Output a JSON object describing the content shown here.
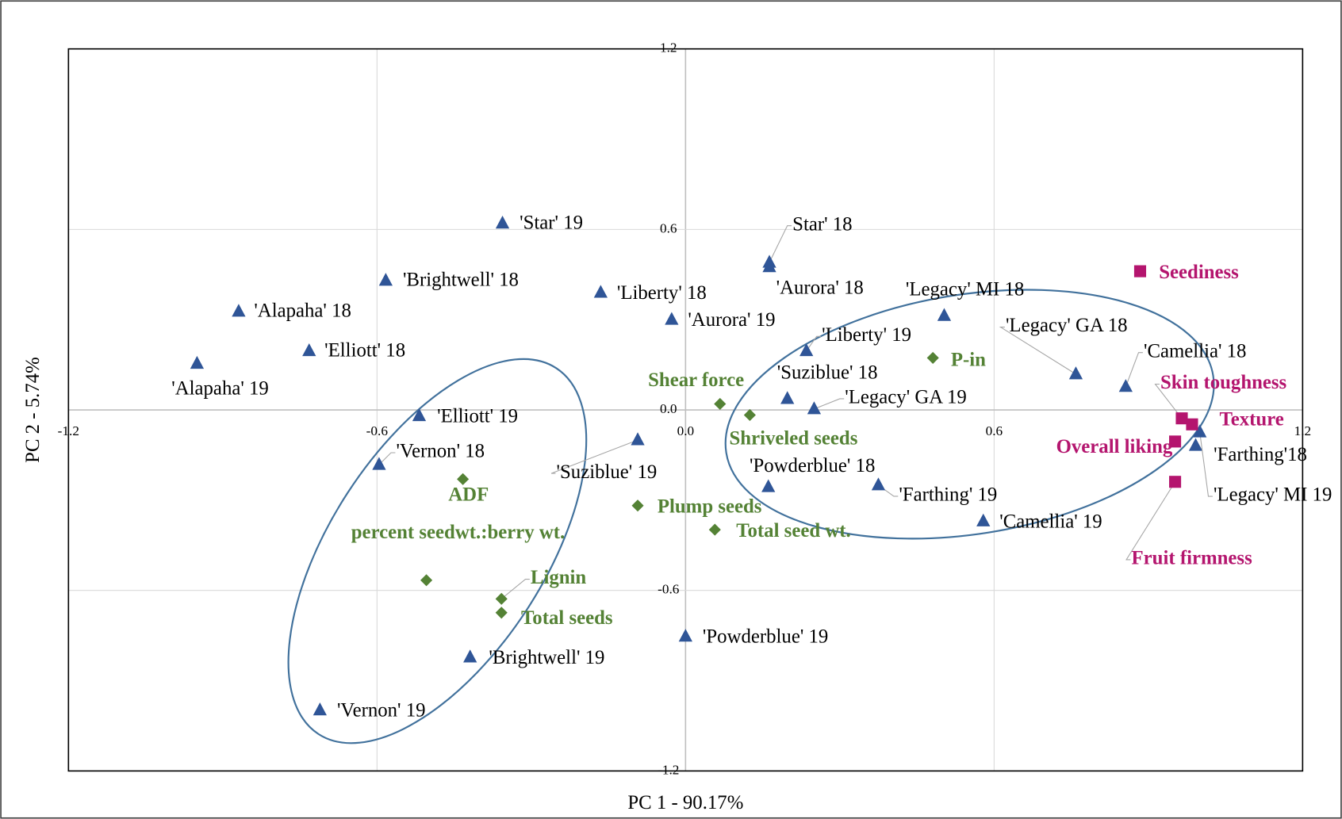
{
  "chart_data": {
    "type": "scatter",
    "xlabel": "PC 1 - 90.17%",
    "ylabel": "PC 2 - 5.74%",
    "xlim": [
      -1.2,
      1.2
    ],
    "ylim": [
      -1.2,
      1.2
    ],
    "xticks": [
      -1.2,
      -0.6,
      {
        "value": 0,
        "label": "0.0"
      },
      0.6,
      1.2
    ],
    "yticks": [
      -1.2,
      -0.6,
      {
        "value": 0,
        "label": "0.0"
      },
      0.6,
      1.2
    ],
    "grid": true,
    "series": [
      {
        "color": "#2f5597",
        "marker": "triangle",
        "labels": [
          "'Star' 19",
          "'Brightwell' 18",
          "'Alapaha' 18",
          "'Elliott' 18",
          "'Alapaha' 19",
          "'Liberty' 18",
          "'Aurora' 19",
          "Star' 18",
          "'Aurora' 18",
          "'Legacy' MI 18",
          "'Liberty' 19",
          "'Suziblue' 18",
          "'Legacy' GA 19",
          "'Legacy' GA 18",
          "'Camellia' 18",
          "'Farthing'18",
          "'Legacy' MI 19",
          "'Elliott' 19",
          "'Vernon' 18",
          "'Suziblue' 19",
          "'Powderblue' 18",
          "'Farthing' 19",
          "'Camellia' 19",
          "'Powderblue' 19",
          "'Brightwell' 19",
          "'Vernon' 19"
        ],
        "x": [
          -0.356,
          -0.583,
          -0.869,
          -0.732,
          -0.95,
          -0.165,
          -0.027,
          0.163,
          0.163,
          0.503,
          0.235,
          0.198,
          0.25,
          0.759,
          0.856,
          0.992,
          1.0,
          -0.518,
          -0.596,
          -0.093,
          0.161,
          0.375,
          0.579,
          0,
          -0.419,
          -0.711
        ],
        "values": [
          0.62,
          0.43,
          0.327,
          0.196,
          0.154,
          0.39,
          0.3,
          0.49,
          0.475,
          0.313,
          0.196,
          0.037,
          0.003,
          0.119,
          0.077,
          -0.119,
          -0.074,
          -0.02,
          -0.182,
          -0.1,
          -0.256,
          -0.25,
          -0.37,
          -0.753,
          -0.822,
          -0.998
        ]
      },
      {
        "color": "#548235",
        "marker": "diamond",
        "labels": [
          "Shear force",
          "Shriveled seeds",
          "P-in",
          "ADF",
          "percent seedwt.:berry wt.",
          "Lignin",
          "Total seeds",
          "Plump seeds",
          "Total seed wt."
        ],
        "x": [
          0.067,
          0.125,
          0.481,
          -0.433,
          -0.504,
          -0.358,
          -0.358,
          -0.093,
          0.057
        ],
        "values": [
          0.02,
          -0.017,
          0.173,
          -0.23,
          -0.566,
          -0.628,
          -0.674,
          -0.318,
          -0.398
        ]
      },
      {
        "color": "#b4156e",
        "marker": "square",
        "labels": [
          "Seediness",
          "Skin toughness",
          "Texture",
          "Overall liking",
          "Fruit firmness"
        ],
        "x": [
          0.884,
          0.965,
          0.985,
          0.952,
          0.952
        ],
        "values": [
          0.461,
          -0.028,
          -0.048,
          -0.105,
          -0.239
        ]
      }
    ]
  }
}
